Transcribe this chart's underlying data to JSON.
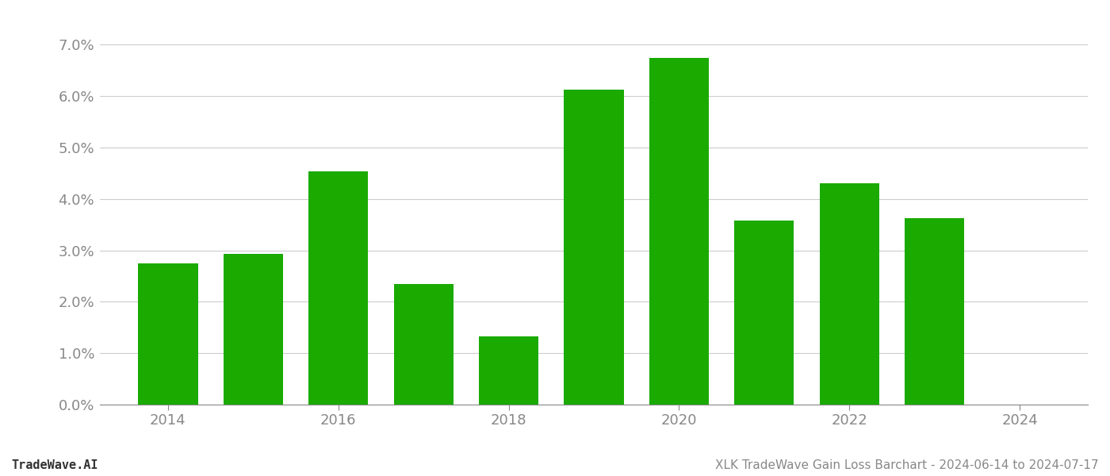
{
  "years": [
    2014,
    2015,
    2016,
    2017,
    2018,
    2019,
    2020,
    2021,
    2022,
    2023
  ],
  "values": [
    0.0275,
    0.0293,
    0.0453,
    0.0235,
    0.0133,
    0.0612,
    0.0675,
    0.0358,
    0.043,
    0.0362
  ],
  "bar_color": "#1aaa00",
  "background_color": "#ffffff",
  "ylim": [
    0,
    0.075
  ],
  "yticks": [
    0.0,
    0.01,
    0.02,
    0.03,
    0.04,
    0.05,
    0.06,
    0.07
  ],
  "xticks": [
    2014,
    2016,
    2018,
    2020,
    2022,
    2024
  ],
  "xlim": [
    2013.2,
    2024.8
  ],
  "xlabel": "",
  "ylabel": "",
  "title": "",
  "footer_left": "TradeWave.AI",
  "footer_right": "XLK TradeWave Gain Loss Barchart - 2024-06-14 to 2024-07-17",
  "grid_color": "#cccccc",
  "tick_color": "#888888",
  "footer_font_size": 11,
  "tick_font_size": 13,
  "bar_width": 0.7
}
